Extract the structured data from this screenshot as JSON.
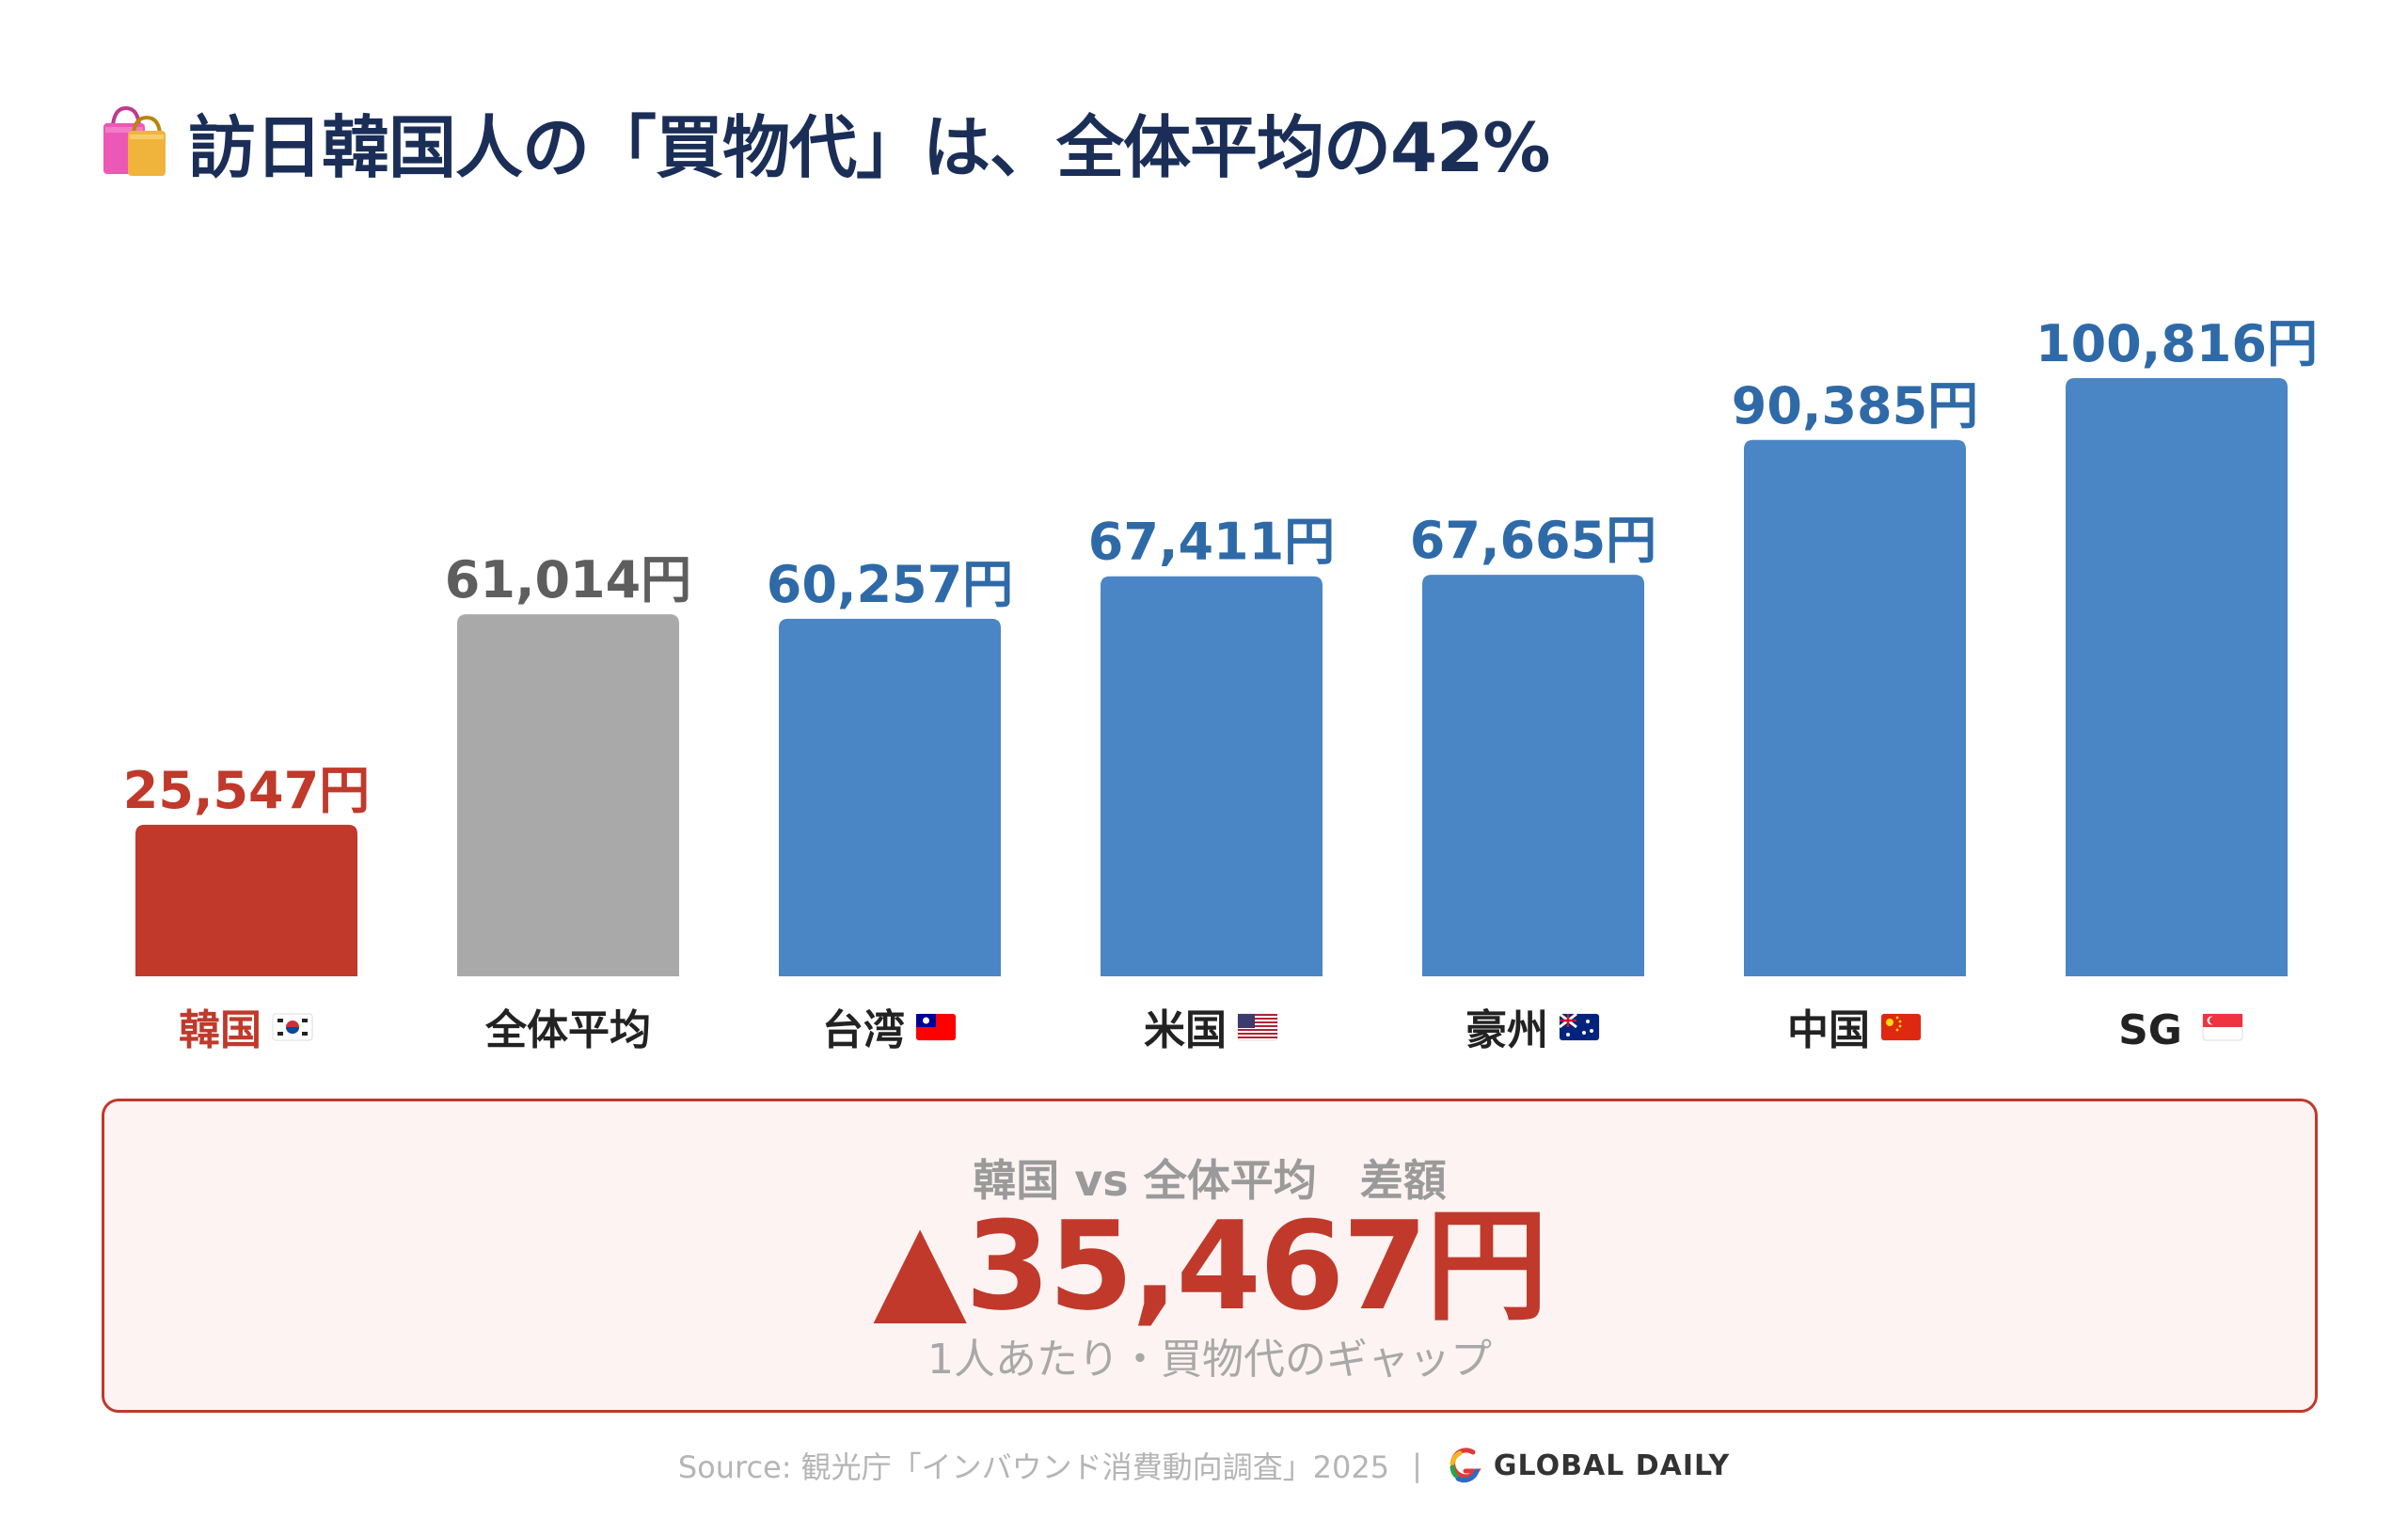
{
  "title": "訪日韓国人の「買物代」は、全体平均の42%",
  "icons": {
    "title_icon": "shopping-bags-icon",
    "brand_icon": "global-daily-logo-icon"
  },
  "colors": {
    "title": "#1a2e57",
    "highlight": "#c0392b",
    "average": "#a9a9a9",
    "average_label": "#5e5e5e",
    "other": "#4a86c5",
    "other_label": "#2f6aa8"
  },
  "chart_data": {
    "type": "bar",
    "title": "訪日韓国人の「買物代」は、全体平均の42%",
    "xlabel": "",
    "ylabel": "",
    "ylim": [
      0,
      100816
    ],
    "grid": false,
    "legend": "none",
    "categories": [
      "韓国",
      "全体平均",
      "台湾",
      "米国",
      "豪州",
      "中国",
      "SG"
    ],
    "flags": [
      "kr-flag-icon",
      "",
      "tw-flag-icon",
      "us-flag-icon",
      "au-flag-icon",
      "cn-flag-icon",
      "sg-flag-icon"
    ],
    "values": [
      25547,
      61014,
      60257,
      67411,
      67665,
      90385,
      100816
    ],
    "value_labels": [
      "25,547円",
      "61,014円",
      "60,257円",
      "67,411円",
      "67,665円",
      "90,385円",
      "100,816円"
    ],
    "roles": [
      "highlight",
      "average",
      "other",
      "other",
      "other",
      "other",
      "other"
    ]
  },
  "summary": {
    "label": "韓国 vs 全体平均　差額",
    "value": "▲35,467円",
    "note": "1人あたり・買物代のギャップ"
  },
  "footer": {
    "source": "Source: 観光庁「インバウンド消費動向調査」2025",
    "separator": "|",
    "brand": "GLOBAL DAILY"
  }
}
